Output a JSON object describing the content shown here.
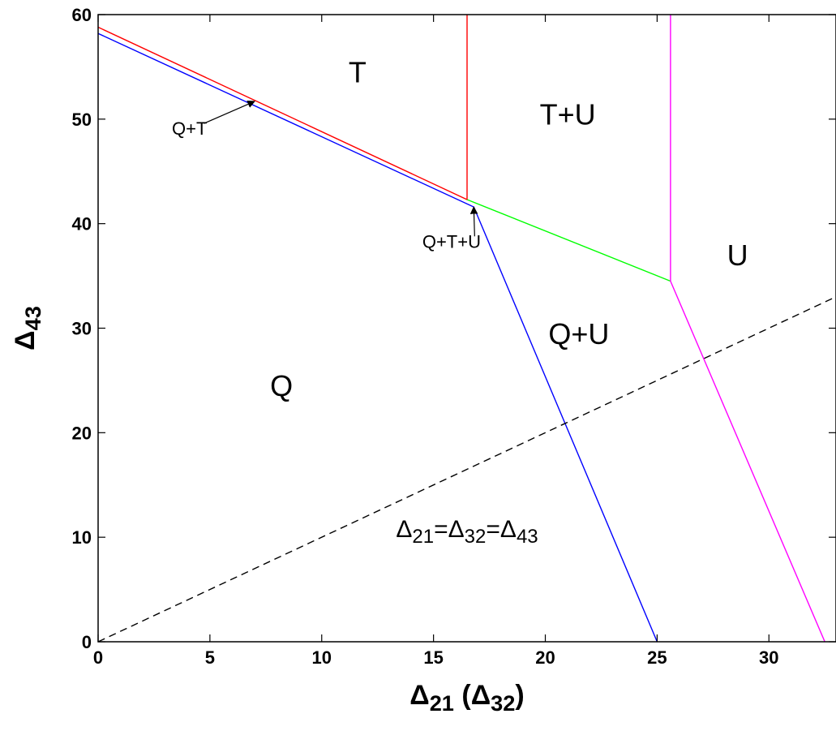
{
  "chart_data": {
    "type": "line",
    "title": "",
    "xlabel": "Δ21 (Δ32)",
    "ylabel": "Δ43",
    "xlim": [
      0,
      33
    ],
    "ylim": [
      0,
      60
    ],
    "grid": false,
    "xticks": [
      "0",
      "5",
      "10",
      "15",
      "20",
      "25",
      "30"
    ],
    "yticks": [
      "0",
      "10",
      "20",
      "30",
      "40",
      "50",
      "60"
    ],
    "series": [
      {
        "color": "#ff0000",
        "points": [
          [
            0,
            58.8
          ],
          [
            16.5,
            42.3
          ],
          [
            16.5,
            60
          ]
        ]
      },
      {
        "color": "#0000ff",
        "points": [
          [
            0,
            58.2
          ],
          [
            16.8,
            41.6
          ],
          [
            25,
            0
          ]
        ]
      },
      {
        "color": "#00ff00",
        "points": [
          [
            16.5,
            42.3
          ],
          [
            25.6,
            34.5
          ]
        ]
      },
      {
        "color": "#ff00ff",
        "points": [
          [
            25.6,
            60
          ],
          [
            25.6,
            34.5
          ],
          [
            32.5,
            0
          ]
        ]
      },
      {
        "color": "#000000",
        "dashed": true,
        "points": [
          [
            0,
            0
          ],
          [
            33,
            33
          ]
        ]
      }
    ],
    "region_labels": [
      {
        "text": "T",
        "x": 11.6,
        "y": 53.5
      },
      {
        "text": "T+U",
        "x": 21,
        "y": 49.5
      },
      {
        "text": "U",
        "x": 28.6,
        "y": 36
      },
      {
        "text": "Q+U",
        "x": 21.5,
        "y": 28.5
      },
      {
        "text": "Q",
        "x": 8.2,
        "y": 23.5
      }
    ],
    "annotations": [
      {
        "text": "Q+T",
        "text_x": 3.3,
        "text_y": 48.5,
        "arrow_to": [
          7,
          51.7
        ]
      },
      {
        "text": "Q+T+U",
        "text_x": 14.5,
        "text_y": 37.7,
        "arrow_to": [
          16.8,
          41.6
        ]
      },
      {
        "text": "Δ21=Δ32=Δ43",
        "x": 16.5,
        "y": 10
      }
    ]
  }
}
